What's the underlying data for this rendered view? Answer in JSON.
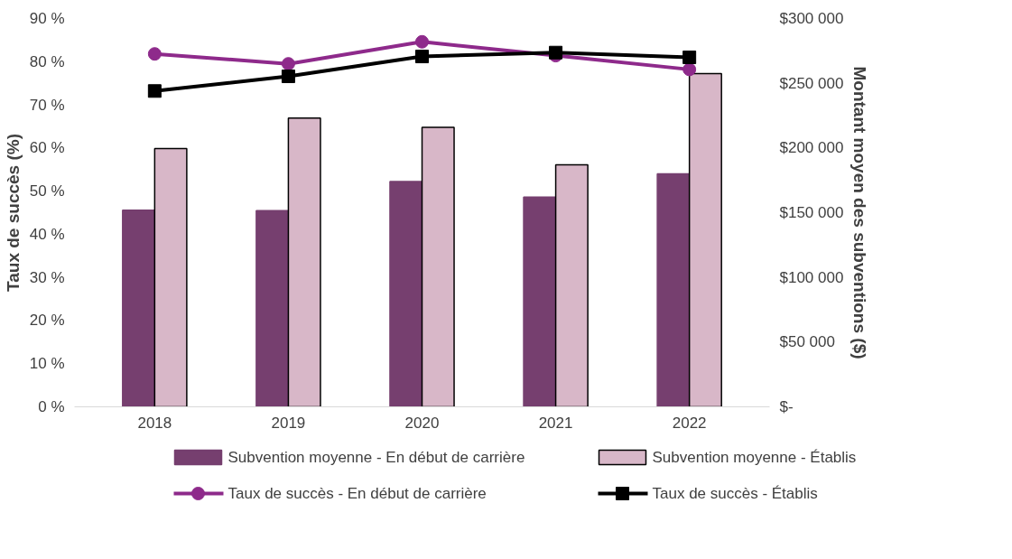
{
  "chart_data": {
    "type": "bar",
    "categories": [
      "2018",
      "2019",
      "2020",
      "2021",
      "2022"
    ],
    "ylabel": "Taux de succès (%)",
    "y2label": "Montant moyen des subventions ($)",
    "ylim": [
      0,
      90
    ],
    "yticks": [
      {
        "value": 0,
        "label": "0 %"
      },
      {
        "value": 10,
        "label": "10 %"
      },
      {
        "value": 20,
        "label": "20 %"
      },
      {
        "value": 30,
        "label": "30 %"
      },
      {
        "value": 40,
        "label": "40 %"
      },
      {
        "value": 50,
        "label": "50 %"
      },
      {
        "value": 60,
        "label": "60 %"
      },
      {
        "value": 70,
        "label": "70 %"
      },
      {
        "value": 80,
        "label": "80 %"
      },
      {
        "value": 90,
        "label": "90 %"
      }
    ],
    "y2lim": [
      0,
      300000
    ],
    "y2ticks": [
      {
        "value": 0,
        "label": "$-"
      },
      {
        "value": 50000,
        "label": "$50 000"
      },
      {
        "value": 100000,
        "label": "$100 000"
      },
      {
        "value": 150000,
        "label": "$150 000"
      },
      {
        "value": 200000,
        "label": "$200 000"
      },
      {
        "value": 250000,
        "label": "$250 000"
      },
      {
        "value": 300000,
        "label": "$300 000"
      }
    ],
    "grid": false,
    "legend": "bottom",
    "series": [
      {
        "name": "Subvention moyenne - En début de carrière",
        "axis": "y2",
        "color": "#763f6f",
        "values": [
          152000,
          151500,
          174000,
          162000,
          180000
        ]
      },
      {
        "name": "Subvention moyenne - Établis",
        "axis": "y2",
        "color": "#d8b7c8",
        "values": [
          199500,
          223000,
          216000,
          187000,
          257500
        ]
      },
      {
        "name": "Taux de succès - En début de carrière",
        "type": "line",
        "color": "#8e2a8b",
        "marker": "circle",
        "values": [
          81.8,
          79.5,
          84.6,
          81.4,
          78.2
        ]
      },
      {
        "name": "Taux de succès - Établis",
        "type": "line",
        "color": "#000000",
        "marker": "square",
        "values": [
          73.2,
          76.6,
          81.2,
          82.1,
          81.0
        ]
      }
    ]
  }
}
